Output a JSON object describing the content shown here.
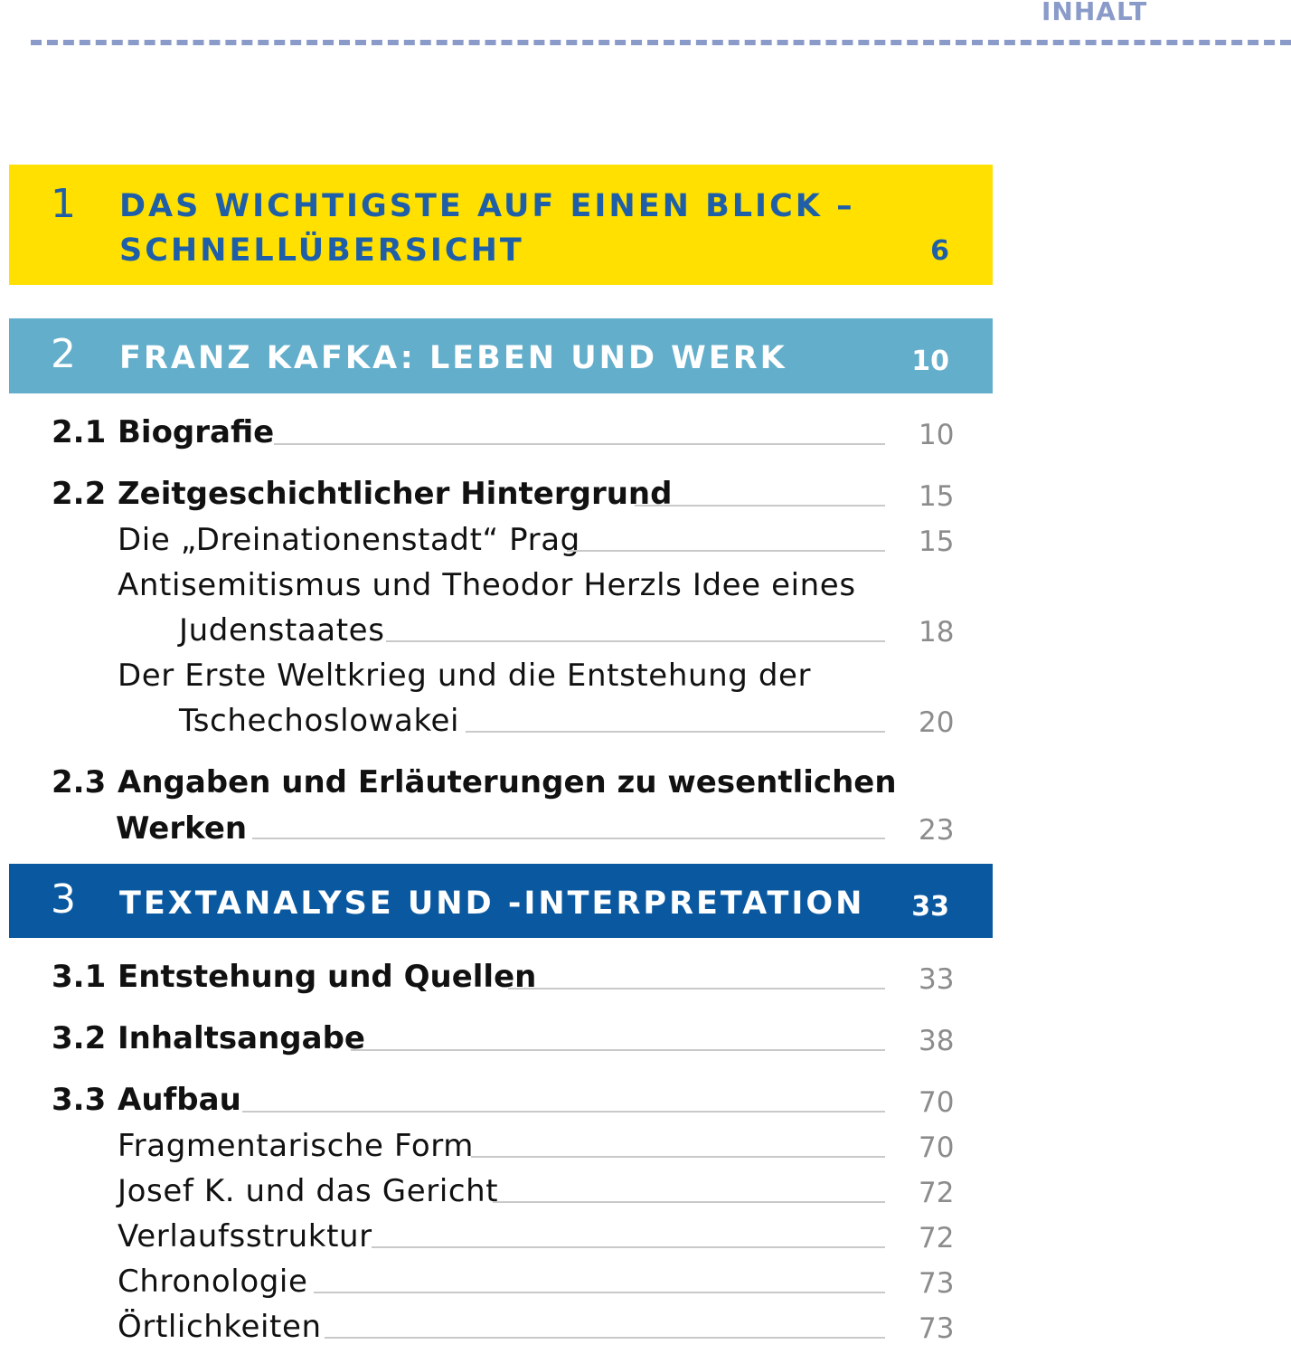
{
  "header": {
    "label": "INHALT"
  },
  "chapters": [
    {
      "number": "1",
      "title_line1": "DAS WICHTIGSTE AUF EINEN BLICK –",
      "title_line2": "SCHNELLÜBERSICHT",
      "page": "6",
      "color": "#ffe000"
    },
    {
      "number": "2",
      "title": "FRANZ KAFKA: LEBEN UND WERK",
      "page": "10",
      "color": "#62aecb"
    },
    {
      "number": "3",
      "title": "TEXTANALYSE UND -INTERPRETATION",
      "page": "33",
      "color": "#0a59a0"
    }
  ],
  "entries": {
    "s2_1": {
      "num": "2.1",
      "text": "Biografie",
      "page": "10"
    },
    "s2_2": {
      "num": "2.2",
      "text": "Zeitgeschichtlicher Hintergrund",
      "page": "15"
    },
    "s2_2a": {
      "text": "Die „Dreinationenstadt“ Prag",
      "page": "15"
    },
    "s2_2b": {
      "line1": "Antisemitismus und Theodor Herzls Idee eines",
      "line2": "Judenstaates",
      "page": "18"
    },
    "s2_2c": {
      "line1": "Der Erste Weltkrieg und die Entstehung der",
      "line2": "Tschechoslowakei",
      "page": "20"
    },
    "s2_3": {
      "num": "2.3",
      "line1": "Angaben und Erläuterungen zu wesentlichen",
      "line2": "Werken",
      "page": "23"
    },
    "s3_1": {
      "num": "3.1",
      "text": "Entstehung und Quellen",
      "page": "33"
    },
    "s3_2": {
      "num": "3.2",
      "text": "Inhaltsangabe",
      "page": "38"
    },
    "s3_3": {
      "num": "3.3",
      "text": "Aufbau",
      "page": "70"
    },
    "s3_3a": {
      "text": "Fragmentarische Form",
      "page": "70"
    },
    "s3_3b": {
      "text": "Josef K. und das Gericht",
      "page": "72"
    },
    "s3_3c": {
      "text": "Verlaufsstruktur",
      "page": "72"
    },
    "s3_3d": {
      "text": "Chronologie",
      "page": "73"
    },
    "s3_3e": {
      "text": "Örtlichkeiten",
      "page": "73"
    }
  }
}
